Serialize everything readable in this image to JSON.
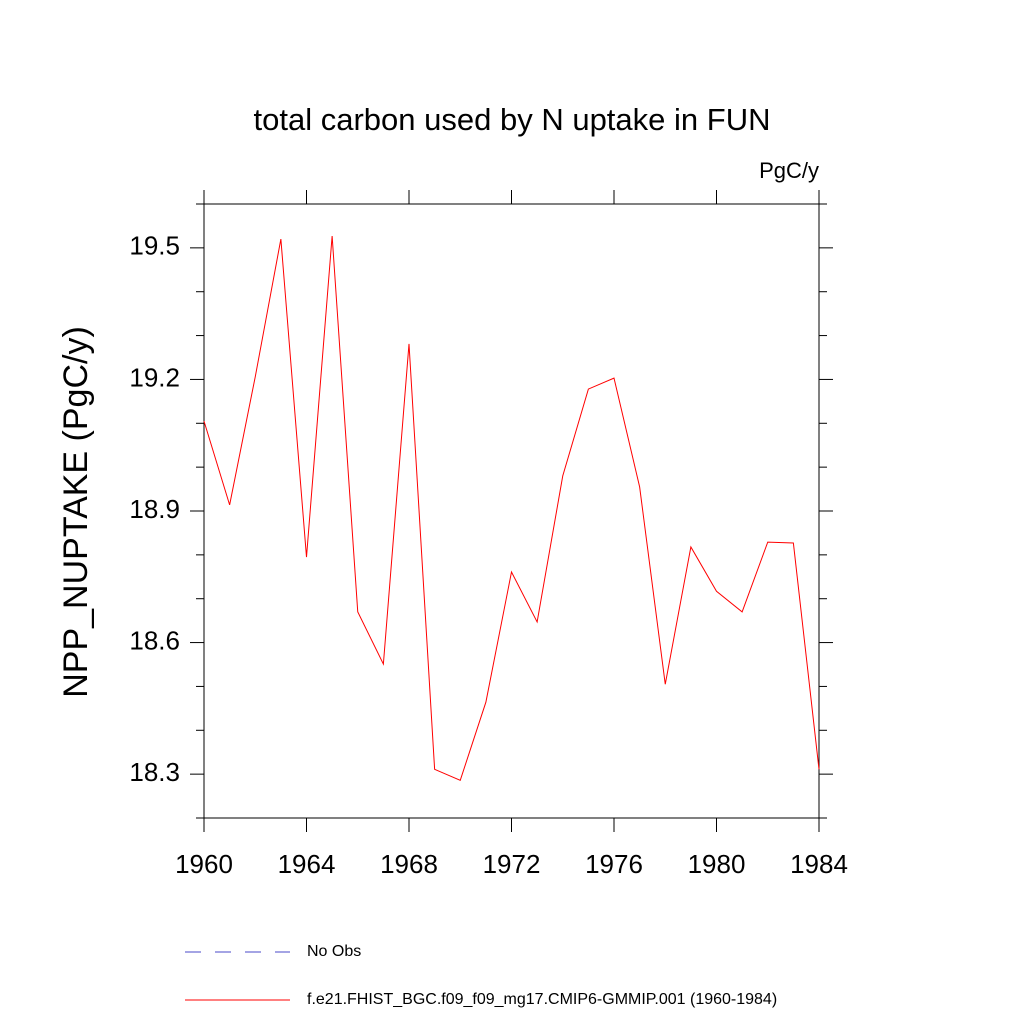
{
  "chart_data": {
    "type": "line",
    "title": "total carbon used by N uptake in FUN",
    "units": "PgC/y",
    "y_label": "NPP_NUPTAKE  (PgC/y)",
    "x": [
      1960,
      1961,
      1962,
      1963,
      1964,
      1965,
      1966,
      1967,
      1968,
      1969,
      1970,
      1971,
      1972,
      1973,
      1974,
      1975,
      1976,
      1977,
      1978,
      1979,
      1980,
      1981,
      1982,
      1983,
      1984
    ],
    "series": [
      {
        "name": "f.e21.FHIST_BGC.f09_f09_mg17.CMIP6-GMMIP.001 (1960-1984)",
        "color": "#ff0000",
        "values": [
          19.105,
          18.914,
          19.206,
          19.52,
          18.795,
          19.527,
          18.67,
          18.551,
          19.281,
          18.311,
          18.286,
          18.464,
          18.761,
          18.647,
          18.98,
          19.178,
          19.203,
          18.955,
          18.505,
          18.818,
          18.717,
          18.67,
          18.829,
          18.827,
          18.311
        ]
      }
    ],
    "extra_legend": [
      {
        "name": "No Obs",
        "color": "#4848c8",
        "style": "dashed"
      }
    ],
    "xlim": [
      1960,
      1984
    ],
    "xticks": [
      1960,
      1964,
      1968,
      1972,
      1976,
      1980,
      1984
    ],
    "ylim": [
      18.2,
      19.6
    ],
    "yticks": [
      18.3,
      18.6,
      18.9,
      19.2,
      19.5
    ],
    "yminorticks": [
      18.2,
      18.4,
      18.5,
      18.7,
      18.8,
      19.0,
      19.1,
      19.3,
      19.4,
      19.6
    ]
  }
}
